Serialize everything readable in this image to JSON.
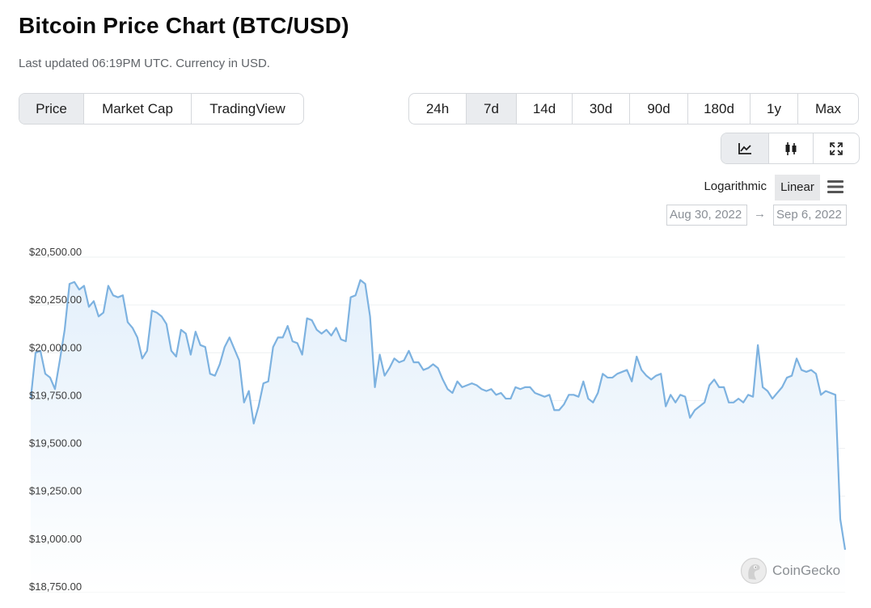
{
  "page": {
    "title": "Bitcoin Price Chart (BTC/USD)",
    "subtitle": "Last updated 06:19PM UTC. Currency in USD."
  },
  "views": [
    {
      "label": "Price",
      "active": true
    },
    {
      "label": "Market Cap",
      "active": false
    },
    {
      "label": "TradingView",
      "active": false
    }
  ],
  "ranges": [
    {
      "label": "24h",
      "active": false
    },
    {
      "label": "7d",
      "active": true
    },
    {
      "label": "14d",
      "active": false
    },
    {
      "label": "30d",
      "active": false
    },
    {
      "label": "90d",
      "active": false
    },
    {
      "label": "180d",
      "active": false
    },
    {
      "label": "1y",
      "active": false
    },
    {
      "label": "Max",
      "active": false
    }
  ],
  "chart_types": [
    {
      "icon": "line-chart-icon",
      "active": true
    },
    {
      "icon": "candlestick-icon",
      "active": false
    },
    {
      "icon": "fullscreen-icon",
      "active": false
    }
  ],
  "scale": {
    "logarithmic": "Logarithmic",
    "linear": "Linear",
    "selected": "Linear"
  },
  "date_range": {
    "from": "Aug 30, 2022",
    "arrow": "→",
    "to": "Sep 6, 2022"
  },
  "brand": {
    "name": "CoinGecko"
  },
  "colors": {
    "line": "#7db2e0",
    "fill_top": "#e4f0fb",
    "active_button": "#eaecef"
  },
  "chart_data": {
    "type": "area",
    "title": "",
    "xlabel": "",
    "ylabel": "",
    "ylim": [
      18750,
      20500
    ],
    "yticks": [
      18750,
      19000,
      19250,
      19500,
      19750,
      20000,
      20250,
      20500
    ],
    "ytick_labels": [
      "$18,750.00",
      "$19,000.00",
      "$19,250.00",
      "$19,500.00",
      "$19,750.00",
      "$20,000.00",
      "$20,250.00",
      "$20,500.00"
    ],
    "x_range": [
      "Aug 30, 2022",
      "Sep 6, 2022"
    ],
    "grid": true,
    "series": [
      {
        "values": [
          19760,
          20000,
          20010,
          19890,
          19870,
          19810,
          19960,
          20120,
          20360,
          20370,
          20330,
          20350,
          20240,
          20270,
          20190,
          20210,
          20350,
          20300,
          20290,
          20300,
          20160,
          20130,
          20080,
          19970,
          20010,
          20220,
          20210,
          20190,
          20150,
          20010,
          19980,
          20120,
          20100,
          19990,
          20110,
          20040,
          20030,
          19890,
          19880,
          19940,
          20030,
          20080,
          20020,
          19960,
          19740,
          19800,
          19630,
          19720,
          19840,
          19850,
          20030,
          20080,
          20080,
          20140,
          20060,
          20050,
          19990,
          20180,
          20170,
          20120,
          20100,
          20120,
          20090,
          20130,
          20070,
          20060,
          20290,
          20300,
          20380,
          20360,
          20190,
          19820,
          19990,
          19880,
          19920,
          19970,
          19950,
          19960,
          20010,
          19950,
          19950,
          19910,
          19920,
          19940,
          19920,
          19860,
          19810,
          19790,
          19850,
          19820,
          19830,
          19840,
          19830,
          19810,
          19800,
          19810,
          19780,
          19790,
          19760,
          19760,
          19820,
          19810,
          19820,
          19820,
          19790,
          19780,
          19770,
          19780,
          19700,
          19700,
          19730,
          19780,
          19780,
          19770,
          19850,
          19760,
          19740,
          19790,
          19890,
          19870,
          19870,
          19890,
          19900,
          19910,
          19850,
          19980,
          19910,
          19880,
          19860,
          19880,
          19890,
          19720,
          19780,
          19740,
          19780,
          19770,
          19660,
          19700,
          19720,
          19740,
          19830,
          19860,
          19820,
          19820,
          19740,
          19740,
          19760,
          19740,
          19780,
          19770,
          20040,
          19820,
          19800,
          19760,
          19790,
          19820,
          19870,
          19880,
          19970,
          19910,
          19900,
          19910,
          19890,
          19780,
          19800,
          19790,
          19780,
          19130,
          18970
        ]
      }
    ]
  }
}
